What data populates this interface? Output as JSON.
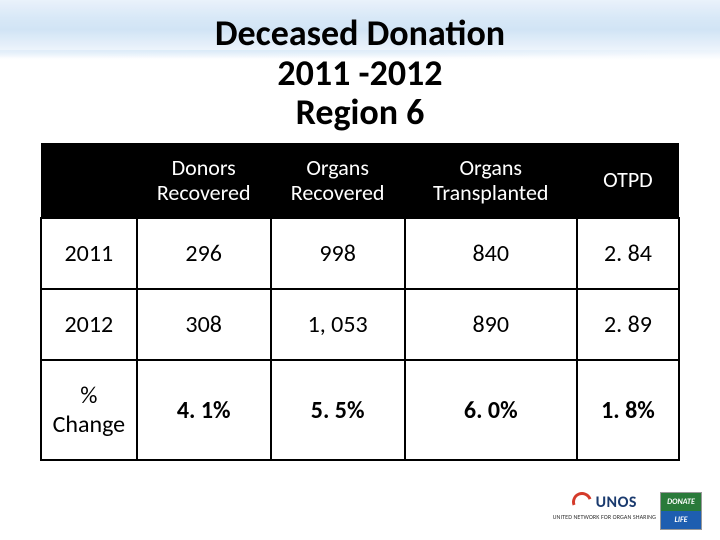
{
  "title_line1": "Deceased Donation",
  "title_line2": "2011 -2012",
  "title_line3": "Region 6",
  "table": {
    "columns": [
      "",
      "Donors Recovered",
      "Organs Recovered",
      "Organs Transplanted",
      "OTPD"
    ],
    "rows": [
      {
        "label": "2011",
        "cells": [
          "296",
          "998",
          "840",
          "2. 84"
        ],
        "bold": false
      },
      {
        "label": "2012",
        "cells": [
          "308",
          "1, 053",
          "890",
          "2. 89"
        ],
        "bold": false
      },
      {
        "label": "% Change",
        "cells": [
          "4. 1%",
          "5. 5%",
          "6. 0%",
          "1. 8%"
        ],
        "bold": true
      }
    ],
    "col_widths_pct": [
      15,
      21,
      21,
      27,
      16
    ],
    "header_bg": "#000000",
    "header_fg": "#ffffff",
    "cell_border": "#000000",
    "cell_bg": "#ffffff",
    "cell_fontsize": 24,
    "header_fontsize": 22
  },
  "logos": {
    "unos_text": "UNOS",
    "unos_subtitle": "UNITED NETWORK FOR ORGAN SHARING",
    "unos_swoosh_color": "#d43a2a",
    "unos_text_color": "#1a3a6e",
    "donate_top": "DONATE",
    "donate_bot": "LIFE",
    "donate_top_bg": "#2a7a3a",
    "donate_bot_bg": "#1e5eb0"
  },
  "background_wave_colors": [
    "#e8f1fb",
    "#d4e6f7",
    "#cde2f5"
  ]
}
